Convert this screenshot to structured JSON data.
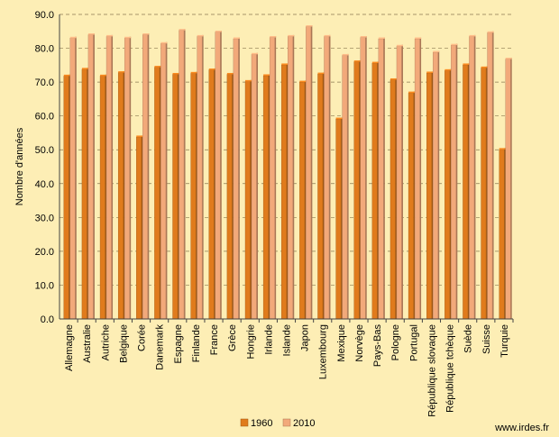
{
  "chart_data": {
    "type": "bar",
    "ylabel": "Nombre d'années",
    "ylim": [
      0,
      90
    ],
    "yticks": [
      "0.0",
      "10.0",
      "20.0",
      "30.0",
      "40.0",
      "50.0",
      "60.0",
      "70.0",
      "80.0",
      "90.0"
    ],
    "grid": true,
    "legend_position": "bottom",
    "categories": [
      "Allemagne",
      "Australie",
      "Autriche",
      "Belgique",
      "Corée",
      "Danemark",
      "Espagne",
      "Finlande",
      "France",
      "Grèce",
      "Hongrie",
      "Irlande",
      "Islande",
      "Japon",
      "Luxembourg",
      "Mexique",
      "Norvège",
      "Pays-Bas",
      "Pologne",
      "Portugal",
      "République slovaque",
      "République tchèque",
      "Suède",
      "Suisse",
      "Turquie"
    ],
    "series": [
      {
        "name": "1960",
        "color": "#e07b1c",
        "values": [
          71.8,
          73.8,
          71.8,
          72.8,
          53.8,
          74.4,
          72.3,
          72.6,
          73.6,
          72.3,
          70.2,
          71.9,
          75.1,
          70.0,
          72.4,
          59.1,
          76.0,
          75.6,
          70.7,
          66.8,
          72.7,
          73.4,
          75.1,
          74.2,
          50.1
        ]
      },
      {
        "name": "2010",
        "color": "#f2a97a",
        "values": [
          83.0,
          84.0,
          83.5,
          83.0,
          84.0,
          81.4,
          85.3,
          83.5,
          84.8,
          82.8,
          78.2,
          83.2,
          83.5,
          86.4,
          83.5,
          77.9,
          83.2,
          82.8,
          80.6,
          82.8,
          78.8,
          80.9,
          83.5,
          84.6,
          76.8
        ]
      }
    ]
  },
  "source": "www.irdes.fr"
}
